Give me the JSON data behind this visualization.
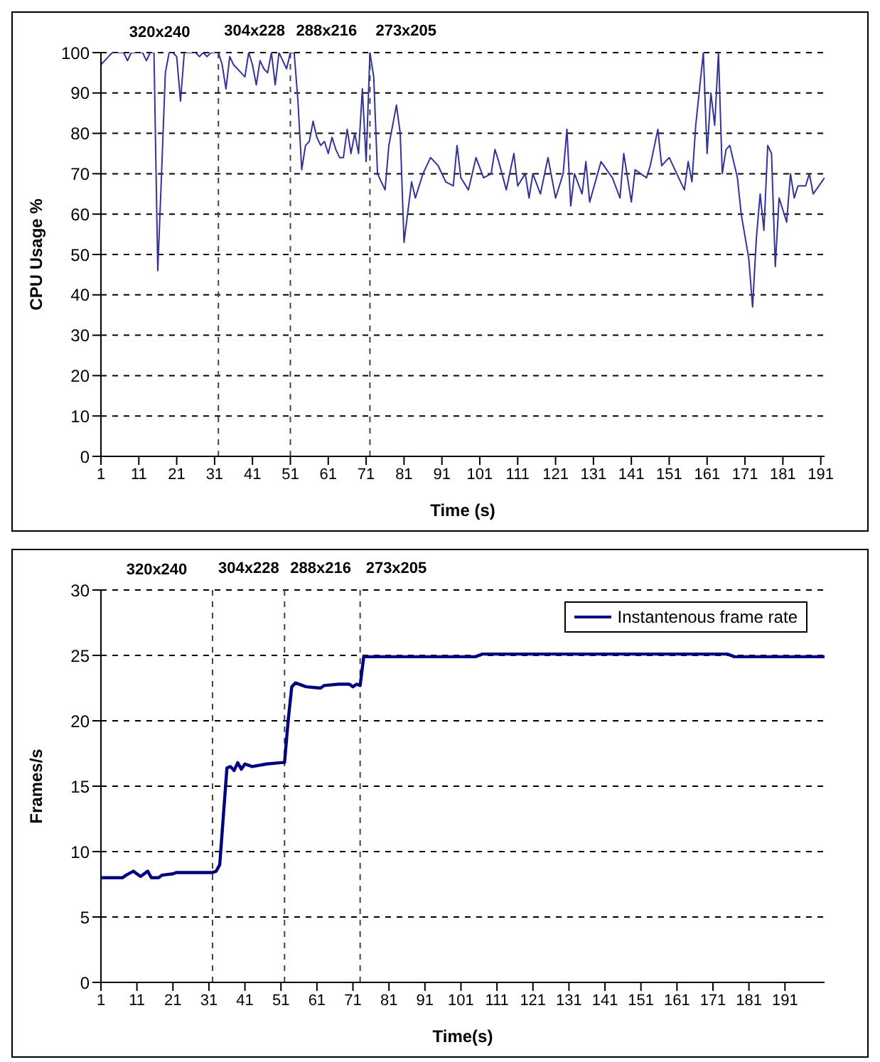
{
  "chart_data": [
    {
      "type": "line",
      "xlabel": "Time (s)",
      "ylabel": "CPU Usage %",
      "annotations": [
        "320x240"
      ],
      "x": [
        1,
        3,
        4,
        7,
        8,
        9,
        12,
        13,
        14,
        15,
        16,
        17,
        18,
        19,
        20,
        21,
        22,
        23,
        26,
        27,
        28,
        29,
        30,
        31,
        32,
        33,
        34,
        35,
        36,
        37,
        38,
        39,
        40,
        41,
        42,
        43,
        44,
        45,
        46,
        47,
        48,
        49,
        50,
        51,
        52,
        53,
        54,
        55,
        56,
        57,
        58,
        59,
        60,
        61,
        62,
        63,
        64,
        65,
        66,
        67,
        68,
        69,
        70,
        71,
        72,
        73,
        74,
        76,
        77,
        79,
        80,
        81,
        83,
        84,
        86,
        88,
        90,
        92,
        94,
        95,
        96,
        98,
        100,
        102,
        104,
        105,
        106,
        108,
        110,
        111,
        113,
        114,
        115,
        117,
        119,
        121,
        123,
        124,
        125,
        126,
        128,
        129,
        130,
        133,
        136,
        138,
        139,
        141,
        142,
        145,
        146,
        148,
        149,
        151,
        155,
        156,
        157,
        158,
        160,
        161,
        162,
        163,
        164,
        165,
        166,
        167,
        169,
        170,
        172,
        173,
        174,
        175,
        176,
        177,
        178,
        179,
        180,
        182,
        183,
        184,
        185,
        187,
        188,
        189,
        192
      ],
      "series": [
        {
          "color": "#333399",
          "values": [
            97,
            99,
            100,
            100,
            98,
            100,
            100,
            98,
            100,
            100,
            46,
            70,
            95,
            100,
            100,
            99,
            88,
            100,
            100,
            99,
            100,
            99,
            100,
            100,
            100,
            97,
            91,
            99,
            97,
            96,
            95,
            94,
            100,
            97,
            92,
            98,
            96,
            95,
            100,
            92,
            100,
            98,
            96,
            100,
            100,
            88,
            71,
            77,
            78,
            83,
            79,
            77,
            78,
            75,
            79,
            76,
            74,
            74,
            81,
            75,
            80,
            75,
            91,
            73,
            100,
            94,
            70,
            66,
            77,
            87,
            80,
            53,
            68,
            64,
            70,
            74,
            72,
            68,
            67,
            77,
            69,
            66,
            74,
            69,
            70,
            76,
            73,
            66,
            75,
            67,
            70,
            64,
            70,
            65,
            74,
            64,
            70,
            81,
            62,
            70,
            65,
            73,
            63,
            73,
            69,
            64,
            75,
            63,
            71,
            69,
            72,
            81,
            72,
            74,
            66,
            73,
            68,
            82,
            100,
            75,
            90,
            82,
            100,
            70,
            76,
            77,
            69,
            60,
            49,
            37,
            54,
            65,
            56,
            77,
            75,
            47,
            64,
            58,
            70,
            64,
            67,
            67,
            70,
            65,
            69
          ]
        }
      ],
      "xlim": [
        1,
        192
      ],
      "xticks": [
        1,
        11,
        21,
        31,
        41,
        51,
        61,
        71,
        81,
        91,
        101,
        111,
        121,
        131,
        141,
        151,
        161,
        171,
        181,
        191
      ],
      "ylim": [
        0,
        100
      ],
      "yticks": [
        0,
        10,
        20,
        30,
        40,
        50,
        60,
        70,
        80,
        90,
        100
      ],
      "grid": "y",
      "line_style": "solid",
      "ref_lines": [
        {
          "axis": "x",
          "value": 32,
          "label": "304x228",
          "line_style": "dashed"
        },
        {
          "axis": "x",
          "value": 51,
          "label": "288x216",
          "line_style": "dashed"
        },
        {
          "axis": "x",
          "value": 72,
          "label": "273x205",
          "line_style": "dashed"
        }
      ]
    },
    {
      "type": "line",
      "xlabel": "Time(s)",
      "ylabel": "Frames/s",
      "annotations": [
        "320x240"
      ],
      "x": [
        1,
        7,
        8,
        10,
        12,
        14,
        15,
        17,
        18,
        21,
        22,
        32,
        33,
        34,
        36,
        37,
        38,
        39,
        40,
        41,
        43,
        47,
        51,
        52,
        53,
        54,
        55,
        58,
        62,
        63,
        67,
        70,
        71,
        72,
        73,
        74,
        105,
        107,
        175,
        177,
        202
      ],
      "series": [
        {
          "name": "Instantenous frame rate",
          "color": "#000080",
          "values": [
            8,
            8,
            8.2,
            8.5,
            8.1,
            8.5,
            8,
            8,
            8.2,
            8.3,
            8.4,
            8.4,
            8.5,
            9,
            16.4,
            16.5,
            16.2,
            16.8,
            16.3,
            16.7,
            16.5,
            16.7,
            16.8,
            16.8,
            20,
            22.6,
            22.9,
            22.6,
            22.5,
            22.7,
            22.8,
            22.8,
            22.6,
            22.8,
            22.7,
            24.9,
            24.9,
            25.1,
            25.1,
            24.9,
            24.9
          ]
        }
      ],
      "xlim": [
        1,
        202
      ],
      "xticks": [
        1,
        11,
        21,
        31,
        41,
        51,
        61,
        71,
        81,
        91,
        101,
        111,
        121,
        131,
        141,
        151,
        161,
        171,
        181,
        191
      ],
      "ylim": [
        0,
        30
      ],
      "yticks": [
        0,
        5,
        10,
        15,
        20,
        25,
        30
      ],
      "grid": "y",
      "legend": "top right",
      "line_style": "solid",
      "ref_lines": [
        {
          "axis": "x",
          "value": 32,
          "label": "304x228",
          "line_style": "dashed"
        },
        {
          "axis": "x",
          "value": 52,
          "label": "288x216",
          "line_style": "dashed"
        },
        {
          "axis": "x",
          "value": 73,
          "label": "273x205",
          "line_style": "dashed"
        }
      ]
    }
  ]
}
